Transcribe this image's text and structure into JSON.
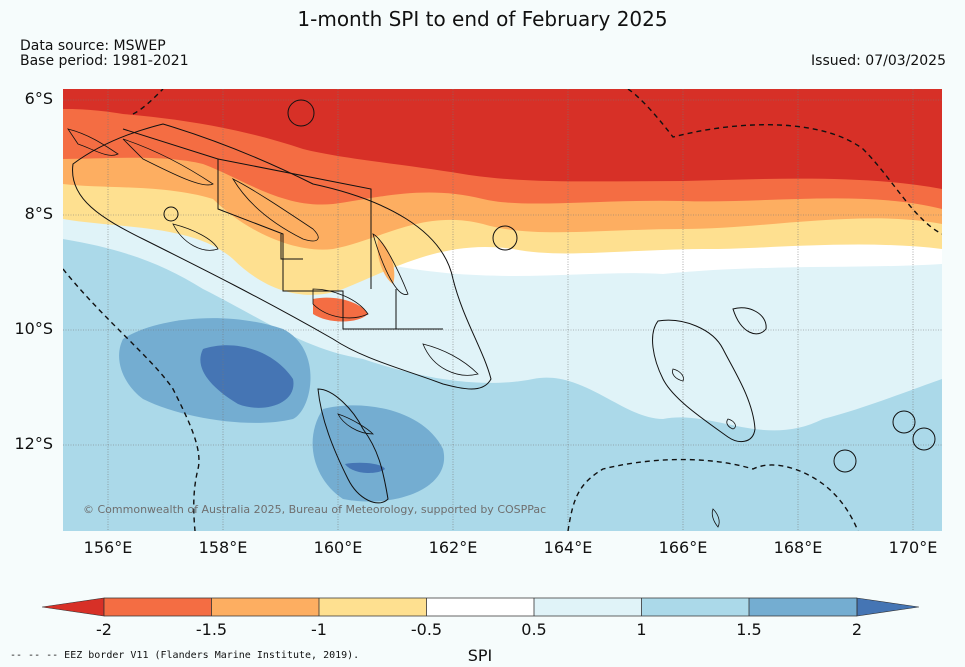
{
  "title": "1-month SPI to end of February 2025",
  "source": {
    "data_source": "Data source: MSWEP",
    "base_period": "Base period: 1981-2021",
    "issued": "Issued: 07/03/2025"
  },
  "axes": {
    "lat_labels": [
      "6°S",
      "8°S",
      "10°S",
      "12°S"
    ],
    "lon_labels": [
      "156°E",
      "158°E",
      "160°E",
      "162°E",
      "164°E",
      "166°E",
      "168°E",
      "170°E"
    ]
  },
  "copyright": "© Commonwealth of Australia 2025, Bureau of Meteorology, supported by COSPPac",
  "colorbar": {
    "ticks": [
      "-2",
      "-1.5",
      "-1",
      "-0.5",
      "0.5",
      "1",
      "1.5",
      "2"
    ],
    "label": "SPI",
    "colors": [
      "#d73027",
      "#f46d43",
      "#fdae61",
      "#fee090",
      "#ffffff",
      "#e0f3f8",
      "#abd9e9",
      "#74add1",
      "#4575b4"
    ]
  },
  "eez_legend": "--  --  -- EEZ border V11 (Flanders Marine Institute, 2019).",
  "colors": {
    "very_dry": "#d73027",
    "dry": "#f46d43",
    "moderately_dry": "#fdae61",
    "slightly_dry": "#fee090",
    "neutral": "#ffffff",
    "slightly_wet": "#e0f3f8",
    "wet": "#abd9e9",
    "moderately_wet": "#74add1",
    "very_wet": "#4575b4"
  }
}
